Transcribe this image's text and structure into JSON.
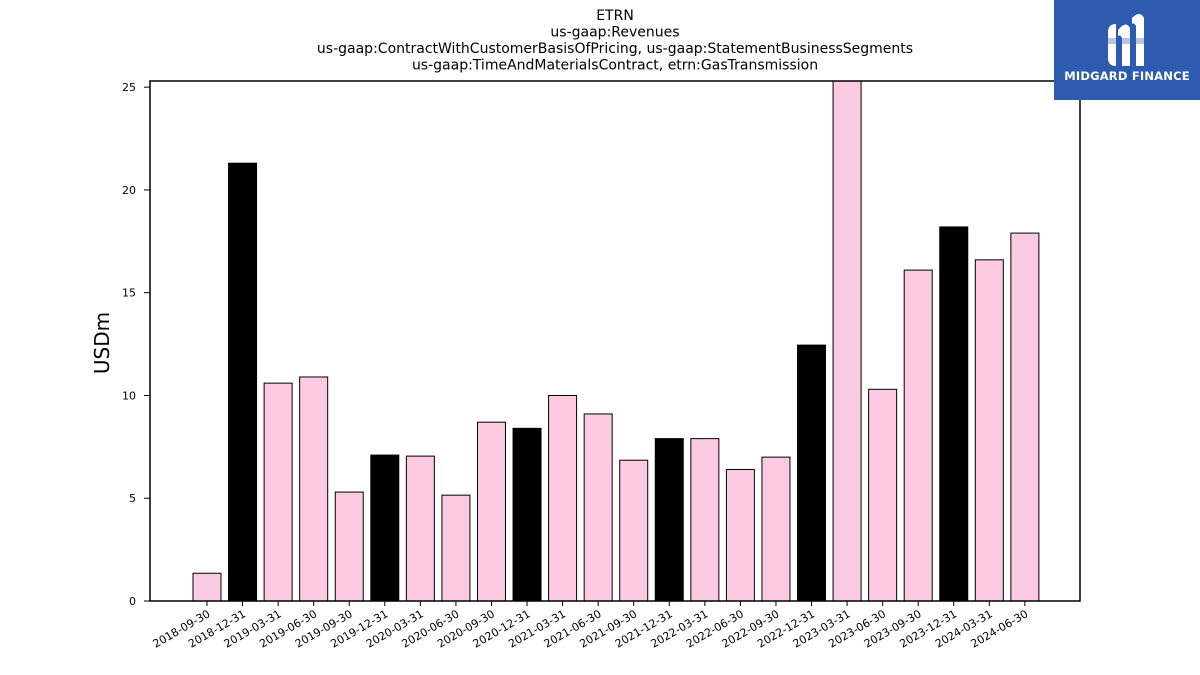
{
  "chart_data": {
    "type": "bar",
    "title_lines": [
      "ETRN",
      "us-gaap:Revenues",
      "us-gaap:ContractWithCustomerBasisOfPricing, us-gaap:StatementBusinessSegments",
      "us-gaap:TimeAndMaterialsContract, etrn:GasTransmission"
    ],
    "xlabel": "",
    "ylabel": "USDm",
    "ylim": [
      0,
      25.3
    ],
    "yticks": [
      0,
      5,
      10,
      15,
      20,
      25
    ],
    "grid": false,
    "categories": [
      "2018-09-30",
      "2018-12-31",
      "2019-03-31",
      "2019-06-30",
      "2019-09-30",
      "2019-12-31",
      "2020-03-31",
      "2020-06-30",
      "2020-09-30",
      "2020-12-31",
      "2021-03-31",
      "2021-06-30",
      "2021-09-30",
      "2021-12-31",
      "2022-03-31",
      "2022-06-30",
      "2022-09-30",
      "2022-12-31",
      "2023-03-31",
      "2023-06-30",
      "2023-09-30",
      "2023-12-31",
      "2024-03-31",
      "2024-06-30"
    ],
    "values": [
      1.35,
      21.3,
      10.6,
      10.9,
      5.3,
      7.1,
      7.05,
      5.15,
      8.7,
      8.4,
      10.0,
      9.1,
      6.85,
      7.9,
      7.9,
      6.4,
      7.0,
      12.45,
      25.3,
      10.3,
      16.1,
      18.2,
      16.6,
      17.9
    ],
    "bar_colors": [
      "#fccae3",
      "#000000",
      "#fccae3",
      "#fccae3",
      "#fccae3",
      "#000000",
      "#fccae3",
      "#fccae3",
      "#fccae3",
      "#000000",
      "#fccae3",
      "#fccae3",
      "#fccae3",
      "#000000",
      "#fccae3",
      "#fccae3",
      "#fccae3",
      "#000000",
      "#fccae3",
      "#fccae3",
      "#fccae3",
      "#000000",
      "#fccae3",
      "#fccae3"
    ]
  },
  "logo": {
    "text": "MIDGARD FINANCE",
    "background": "#2d5bb0"
  }
}
